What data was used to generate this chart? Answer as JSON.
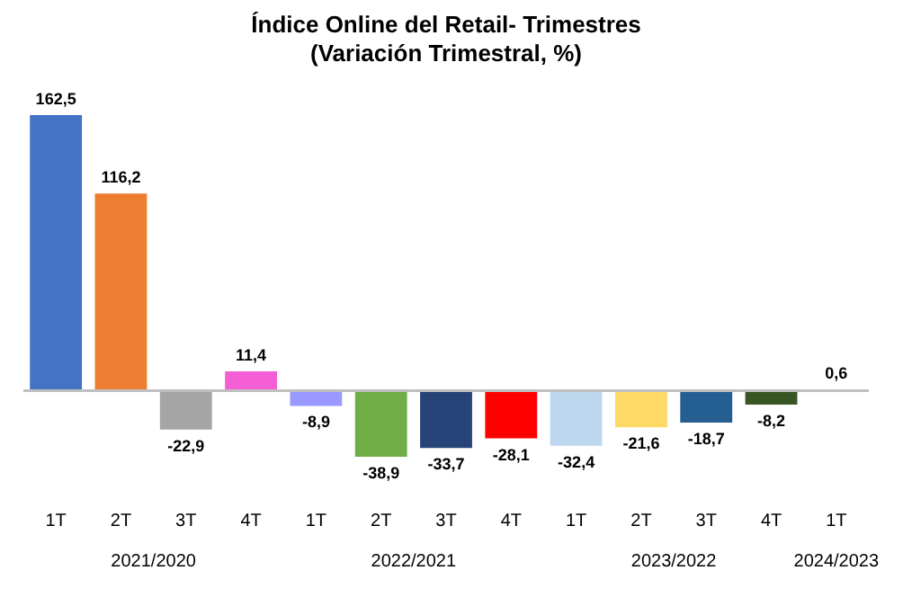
{
  "chart_data": {
    "type": "bar",
    "title": "Índice Online del Retail- Trimestres",
    "subtitle": "(Variación Trimestral, %)",
    "categories": [
      "1T",
      "2T",
      "3T",
      "4T",
      "1T",
      "2T",
      "3T",
      "4T",
      "1T",
      "2T",
      "3T",
      "4T",
      "1T"
    ],
    "values": [
      162.5,
      116.2,
      -22.9,
      11.4,
      -8.9,
      -38.9,
      -33.7,
      -28.1,
      -32.4,
      -21.6,
      -18.7,
      -8.2,
      0.6
    ],
    "value_labels": [
      "162,5",
      "116,2",
      "-22,9",
      "11,4",
      "-8,9",
      "-38,9",
      "-33,7",
      "-28,1",
      "-32,4",
      "-21,6",
      "-18,7",
      "-8,2",
      "0,6"
    ],
    "colors": [
      "#4472c4",
      "#ed7d31",
      "#a5a5a5",
      "#f45fd6",
      "#9999ff",
      "#70ad47",
      "#264478",
      "#ff0000",
      "#bdd7ee",
      "#ffd966",
      "#255e91",
      "#375623",
      "#d9d9ff"
    ],
    "annotations": [
      "2021/2020",
      "2022/2021",
      "2023/2022",
      "2024/2023"
    ]
  }
}
